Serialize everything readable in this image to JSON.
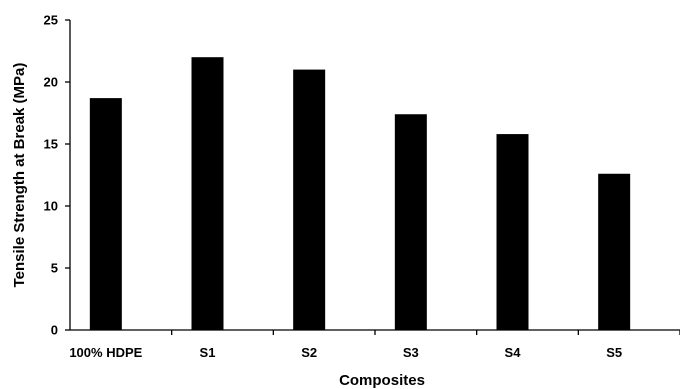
{
  "chart_data": {
    "type": "bar",
    "categories": [
      "100% HDPE",
      "S1",
      "S2",
      "S3",
      "S4",
      "S5"
    ],
    "values": [
      18.7,
      22.0,
      21.0,
      17.4,
      15.8,
      12.6
    ],
    "title": "",
    "xlabel": "Composites",
    "ylabel": "Tensile Strength at Break (MPa)",
    "ylim": [
      0,
      25
    ],
    "yticks": [
      "0",
      "5",
      "10",
      "15",
      "20",
      "25"
    ],
    "grid": false,
    "bar_color": "#000000"
  }
}
